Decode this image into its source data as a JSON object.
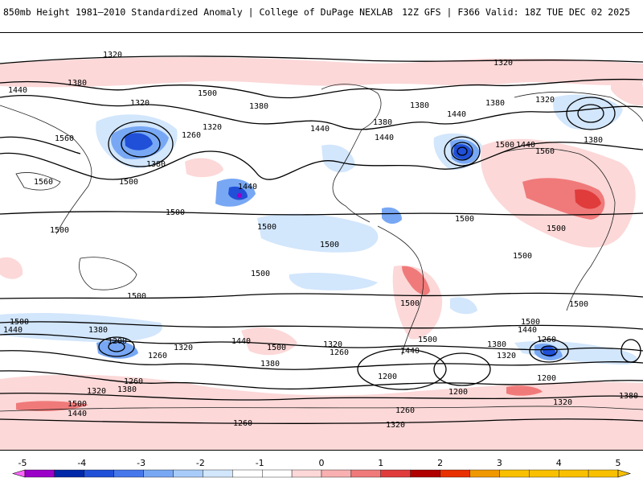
{
  "header": {
    "title": "850mb Height 1981–2010 Standardized Anomaly | College of DuPage NEXLAB",
    "run_info": "12Z GFS | F366 Valid: 18Z TUE DEC 02 2025"
  },
  "map": {
    "contour_labels": {
      "c1320": "1320",
      "c1380": "1380",
      "c1440": "1440",
      "c1500": "1500",
      "c1560": "1560",
      "c1260": "1260",
      "c1200": "1200"
    }
  },
  "colorbar": {
    "ticks": [
      "-5",
      "-4",
      "-3",
      "-2",
      "-1",
      "0",
      "1",
      "2",
      "3",
      "4",
      "5"
    ],
    "colors": {
      "m5": "#ff66ff",
      "m45": "#9a00c8",
      "m4": "#0028a8",
      "m35": "#2050d8",
      "m3": "#4678ec",
      "m25": "#78a8f4",
      "m2": "#a8ccfa",
      "m15": "#d2e6fc",
      "p1": "#fcd8d8",
      "p15": "#f8b0b0",
      "p2": "#f07a7a",
      "p25": "#e03c3c",
      "p3": "#b00000",
      "p35": "#e83000",
      "p4": "#f09800",
      "p5": "#f8c000"
    }
  }
}
